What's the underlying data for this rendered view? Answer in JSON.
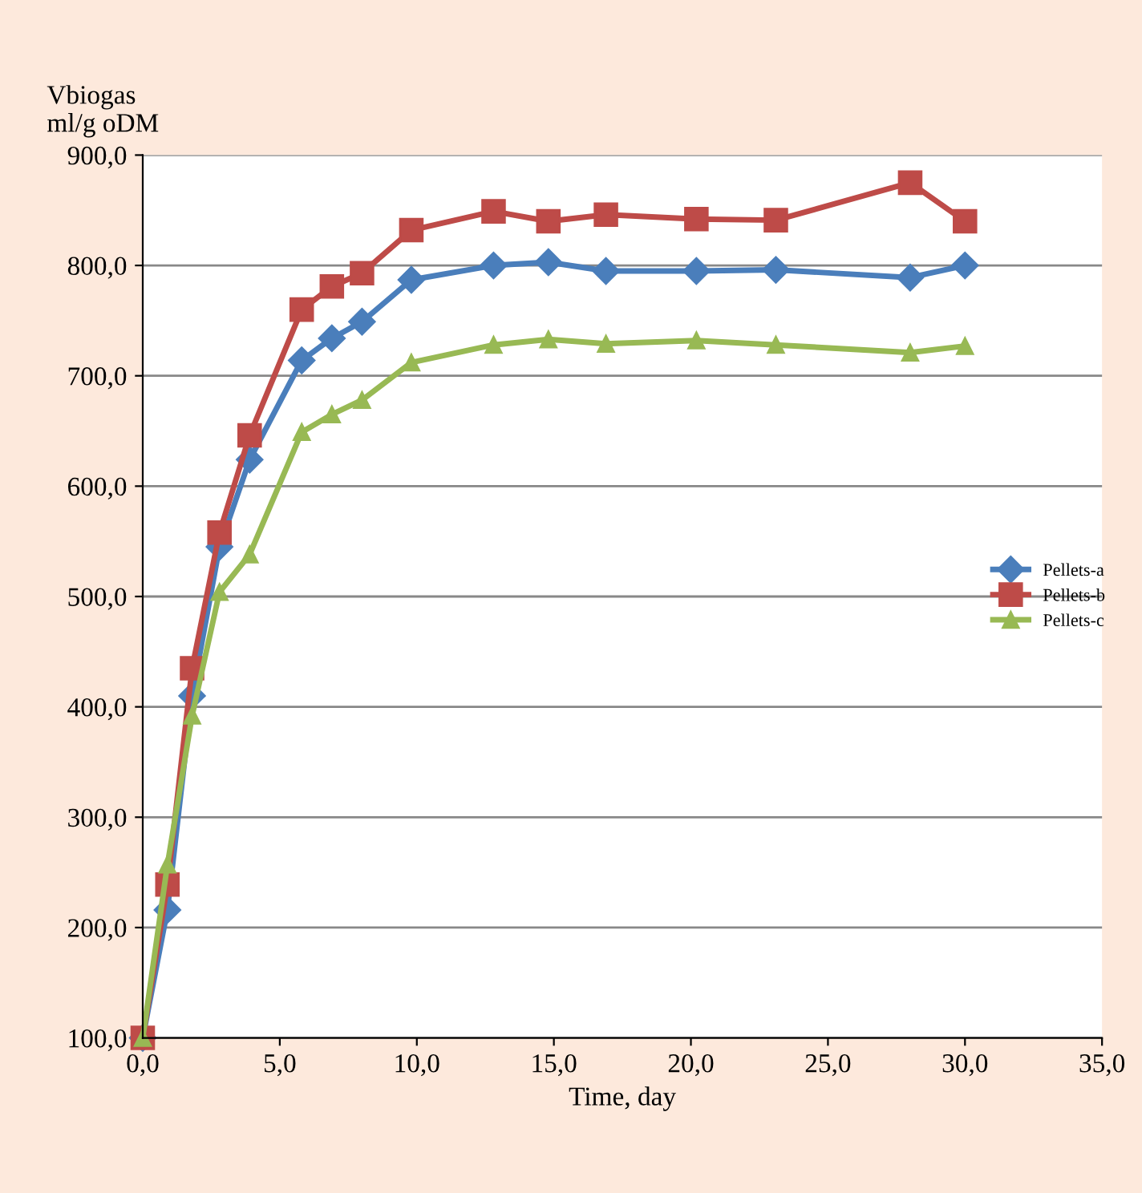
{
  "chart_data": {
    "type": "line",
    "xlabel": "Time, day",
    "ylabel": "Vbiogas\nml/g oDM",
    "x": [
      0,
      0.9,
      1.8,
      2.8,
      3.9,
      5.8,
      6.9,
      8.0,
      9.8,
      12.8,
      14.8,
      16.9,
      20.2,
      23.1,
      28.0,
      30.0
    ],
    "series": [
      {
        "name": "Pellets-a",
        "color": "#4a7ebb",
        "marker": "diamond",
        "values": [
          100,
          216,
          410,
          545,
          624,
          714,
          734,
          749,
          787,
          800,
          803,
          795,
          795,
          796,
          789,
          800
        ]
      },
      {
        "name": "Pellets-b",
        "color": "#be4b48",
        "marker": "square",
        "values": [
          100,
          239,
          435,
          558,
          646,
          760,
          781,
          793,
          832,
          849,
          840,
          846,
          842,
          841,
          875,
          840
        ]
      },
      {
        "name": "Pellets-c",
        "color": "#98b954",
        "marker": "triangle",
        "values": [
          100,
          257,
          392,
          504,
          538,
          649,
          665,
          678,
          712,
          728,
          733,
          729,
          732,
          728,
          721,
          727
        ]
      }
    ],
    "xlim": [
      0,
      35
    ],
    "ylim": [
      100,
      900
    ],
    "xticks": [
      {
        "value": 0,
        "label": "0,0"
      },
      {
        "value": 5,
        "label": "5,0"
      },
      {
        "value": 10,
        "label": "10,0"
      },
      {
        "value": 15,
        "label": "15,0"
      },
      {
        "value": 20,
        "label": "20,0"
      },
      {
        "value": 25,
        "label": "25,0"
      },
      {
        "value": 30,
        "label": "30,0"
      },
      {
        "value": 35,
        "label": "35,0"
      }
    ],
    "yticks": [
      {
        "value": 100,
        "label": "100,0"
      },
      {
        "value": 200,
        "label": "200,0"
      },
      {
        "value": 300,
        "label": "300,0"
      },
      {
        "value": 400,
        "label": "400,0"
      },
      {
        "value": 500,
        "label": "500,0"
      },
      {
        "value": 600,
        "label": "600,0"
      },
      {
        "value": 700,
        "label": "700,0"
      },
      {
        "value": 800,
        "label": "800,0"
      },
      {
        "value": 900,
        "label": "900,0"
      }
    ],
    "grid": "y",
    "legend": "right",
    "line_style": "solid"
  }
}
